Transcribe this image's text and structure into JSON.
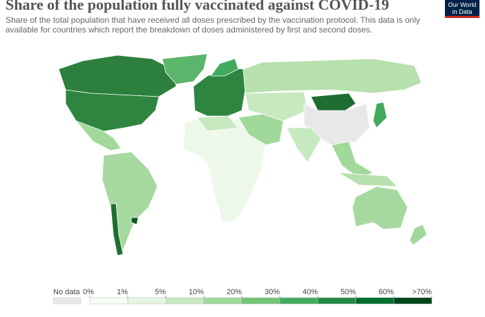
{
  "header": {
    "title": "Share of the population fully vaccinated against COVID-19",
    "subtitle": "Share of the total population that have received all doses prescribed by the vaccination protocol. This data is only available for countries which report the breakdown of doses administered by first and second doses.",
    "logo": [
      "Our World",
      "in Data"
    ]
  },
  "legend": {
    "no_data": "No data",
    "no_data_color": "#e8e8e8",
    "ticks": [
      {
        "value": 0,
        "label": "0%"
      },
      {
        "value": 1,
        "label": "1%"
      },
      {
        "value": 5,
        "label": "5%"
      },
      {
        "value": 10,
        "label": "10%"
      },
      {
        "value": 20,
        "label": "20%"
      },
      {
        "value": 30,
        "label": "30%"
      },
      {
        "value": 40,
        "label": "40%"
      },
      {
        "value": 50,
        "label": "50%"
      },
      {
        "value": 60,
        "label": "60%"
      },
      {
        "value": 70,
        "label": ">70%"
      }
    ],
    "colors": [
      "#f7fcf5",
      "#e5f5e0",
      "#c7e9c0",
      "#a1d99b",
      "#74c476",
      "#41ab5d",
      "#238b45",
      "#006d2c",
      "#00441b"
    ]
  }
}
